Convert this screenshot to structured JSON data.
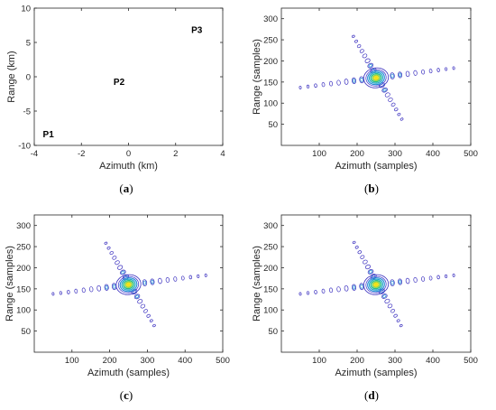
{
  "chart_data": [
    {
      "id": "a",
      "type": "scatter",
      "panel_label": "a",
      "xlabel": "Azimuth (km)",
      "ylabel": "Range (km)",
      "xlim": [
        -4,
        4
      ],
      "ylim": [
        -10,
        10
      ],
      "xticks": [
        "-4",
        "-2",
        "0",
        "2",
        "4"
      ],
      "yticks": [
        "-10",
        "-5",
        "0",
        "5",
        "10"
      ],
      "points": [
        {
          "label": "P1",
          "x": -3.4,
          "y": -8.8
        },
        {
          "label": "P2",
          "x": -0.4,
          "y": -1.2
        },
        {
          "label": "P3",
          "x": 2.9,
          "y": 6.4
        }
      ]
    },
    {
      "id": "b",
      "type": "contour",
      "panel_label": "b",
      "xlabel": "Azimuth (samples)",
      "ylabel": "Range (samples)",
      "xlim": [
        0,
        500
      ],
      "ylim": [
        0,
        325
      ],
      "xticks": [
        "100",
        "200",
        "300",
        "400",
        "500"
      ],
      "yticks": [
        "50",
        "100",
        "150",
        "200",
        "250",
        "300"
      ],
      "peak": {
        "x": 250,
        "y": 160
      },
      "arms": [
        {
          "from": [
            50,
            137
          ],
          "to": [
            455,
            183
          ]
        },
        {
          "from": [
            190,
            258
          ],
          "to": [
            318,
            62
          ]
        }
      ]
    },
    {
      "id": "c",
      "type": "contour",
      "panel_label": "c",
      "xlabel": "Azimuth (samples)",
      "ylabel": "Range (samples)",
      "xlim": [
        0,
        500
      ],
      "ylim": [
        0,
        325
      ],
      "xticks": [
        "100",
        "200",
        "300",
        "400",
        "500"
      ],
      "yticks": [
        "50",
        "100",
        "150",
        "200",
        "250",
        "300"
      ],
      "peak": {
        "x": 250,
        "y": 160
      },
      "arms": [
        {
          "from": [
            50,
            138
          ],
          "to": [
            455,
            182
          ]
        },
        {
          "from": [
            190,
            258
          ],
          "to": [
            318,
            63
          ]
        }
      ]
    },
    {
      "id": "d",
      "type": "contour",
      "panel_label": "d",
      "xlabel": "Azimuth (samples)",
      "ylabel": "Range (samples)",
      "xlim": [
        0,
        500
      ],
      "ylim": [
        0,
        325
      ],
      "xticks": [
        "100",
        "200",
        "300",
        "400",
        "500"
      ],
      "yticks": [
        "50",
        "100",
        "150",
        "200",
        "250",
        "300"
      ],
      "peak": {
        "x": 250,
        "y": 160
      },
      "arms": [
        {
          "from": [
            50,
            138
          ],
          "to": [
            455,
            182
          ]
        },
        {
          "from": [
            192,
            260
          ],
          "to": [
            316,
            63
          ]
        }
      ]
    }
  ],
  "colors": {
    "contour_outer": "#3a2fbf",
    "contour_mid": "#1f8bd4",
    "contour_inner": "#2bbf8a",
    "contour_core": "#f3e11a",
    "axes": "#262626"
  }
}
